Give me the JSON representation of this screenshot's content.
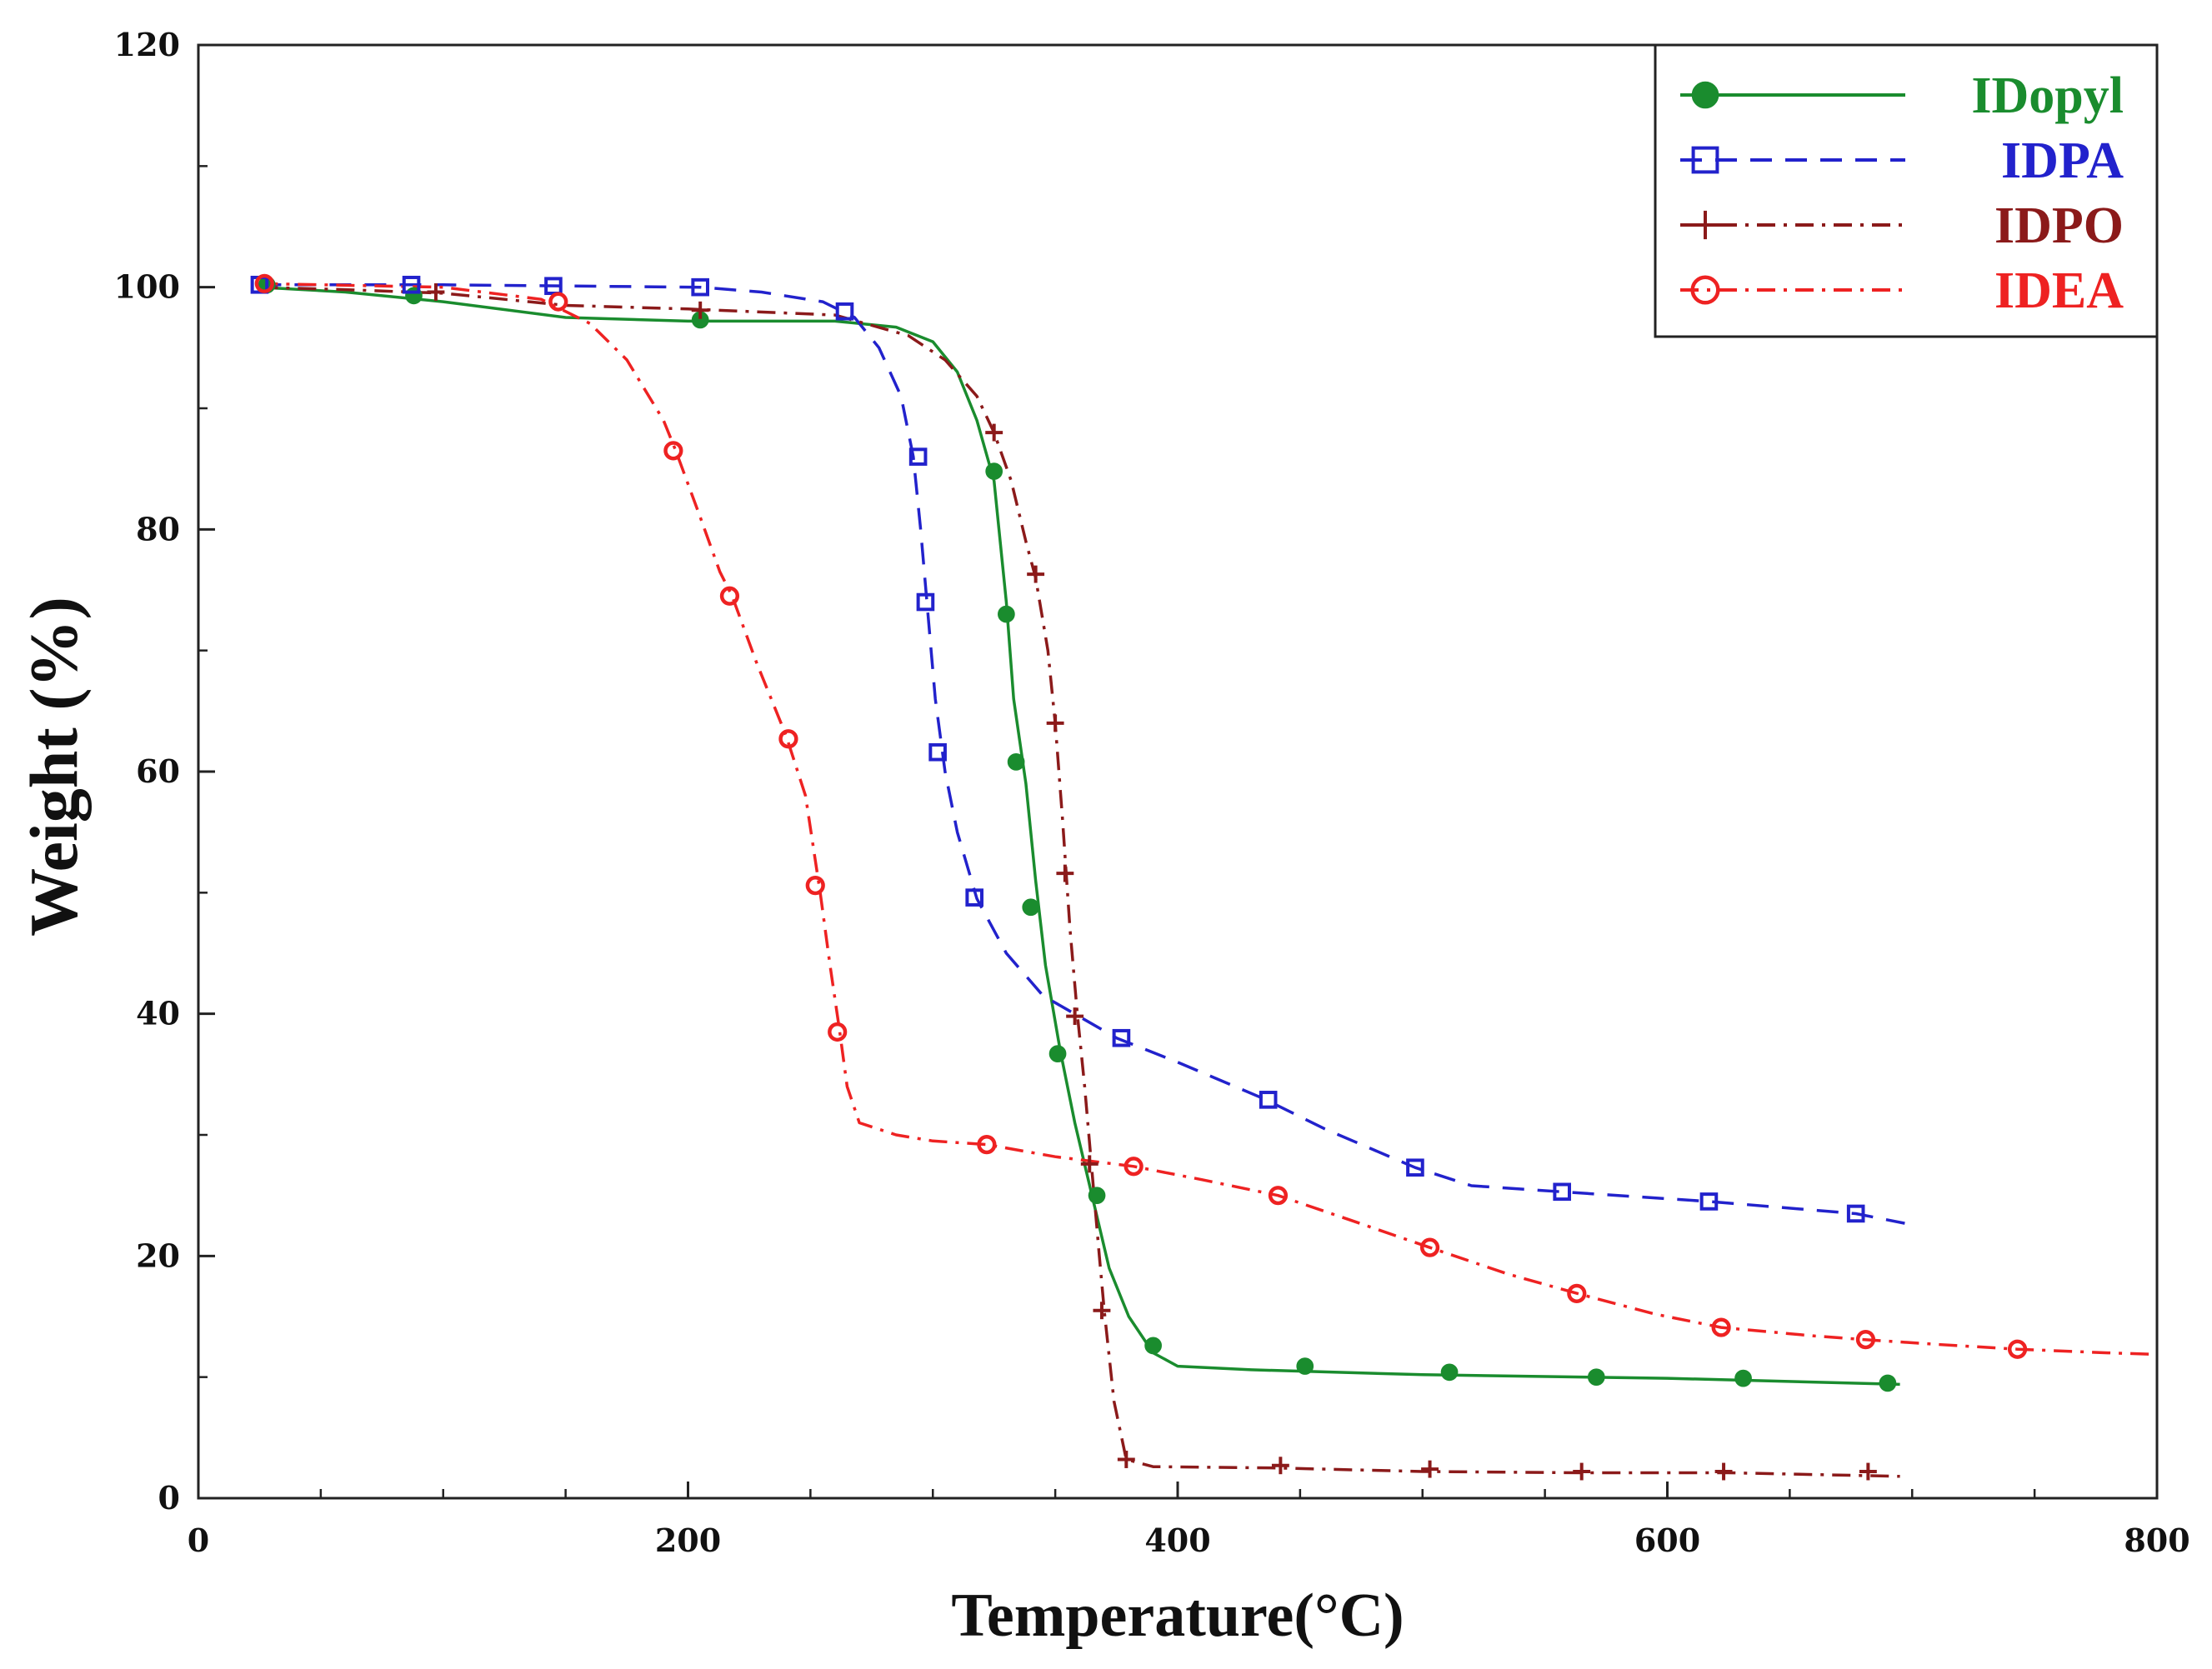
{
  "chart_data": {
    "type": "line",
    "title": "",
    "xlabel": "Temperature(°C)",
    "ylabel": "Weight (%)",
    "xlim": [
      0,
      800
    ],
    "ylim": [
      0,
      120
    ],
    "xticks": [
      0,
      200,
      400,
      600,
      800
    ],
    "yticks": [
      0,
      20,
      40,
      60,
      80,
      100,
      120
    ],
    "grid": false,
    "legend_position": "top-right",
    "series": [
      {
        "name": "IDopyl",
        "color": "#1a8c2e",
        "marker": "filled-circle",
        "line_style": "solid",
        "line": [
          [
            25,
            100
          ],
          [
            60,
            99.6
          ],
          [
            100,
            98.8
          ],
          [
            150,
            97.5
          ],
          [
            200,
            97.2
          ],
          [
            260,
            97.2
          ],
          [
            285,
            96.7
          ],
          [
            300,
            95.5
          ],
          [
            310,
            93
          ],
          [
            318,
            89
          ],
          [
            325,
            84
          ],
          [
            330,
            74
          ],
          [
            333,
            66
          ],
          [
            338,
            59
          ],
          [
            342,
            51
          ],
          [
            346,
            44
          ],
          [
            352,
            37
          ],
          [
            358,
            31
          ],
          [
            365,
            25
          ],
          [
            372,
            19
          ],
          [
            380,
            15
          ],
          [
            390,
            12
          ],
          [
            400,
            10.9
          ],
          [
            430,
            10.6
          ],
          [
            500,
            10.2
          ],
          [
            600,
            9.9
          ],
          [
            695,
            9.4
          ]
        ],
        "markers": [
          [
            28,
            100.2
          ],
          [
            88,
            99.3
          ],
          [
            205,
            97.3
          ],
          [
            325,
            84.8
          ],
          [
            330,
            73
          ],
          [
            334,
            60.8
          ],
          [
            340,
            48.8
          ],
          [
            351,
            36.7
          ],
          [
            367,
            25
          ],
          [
            390,
            12.6
          ],
          [
            452,
            10.9
          ],
          [
            511,
            10.4
          ],
          [
            571,
            10
          ],
          [
            631,
            9.9
          ],
          [
            690,
            9.5
          ]
        ]
      },
      {
        "name": "IDPA",
        "color": "#2222cc",
        "marker": "open-square",
        "line_style": "dashed",
        "line": [
          [
            25,
            100.2
          ],
          [
            100,
            100.2
          ],
          [
            150,
            100.1
          ],
          [
            205,
            100
          ],
          [
            230,
            99.6
          ],
          [
            255,
            98.8
          ],
          [
            268,
            97.5
          ],
          [
            278,
            95
          ],
          [
            287,
            91
          ],
          [
            292,
            86
          ],
          [
            295,
            80
          ],
          [
            298,
            73
          ],
          [
            301,
            66
          ],
          [
            305,
            60
          ],
          [
            310,
            55
          ],
          [
            318,
            49.5
          ],
          [
            330,
            45
          ],
          [
            345,
            41.5
          ],
          [
            375,
            38
          ],
          [
            400,
            36
          ],
          [
            435,
            33
          ],
          [
            460,
            30.5
          ],
          [
            497,
            27.3
          ],
          [
            520,
            25.8
          ],
          [
            557,
            25.3
          ],
          [
            617,
            24.5
          ],
          [
            677,
            23.5
          ],
          [
            697,
            22.7
          ]
        ],
        "markers": [
          [
            25,
            100.2
          ],
          [
            87,
            100.2
          ],
          [
            145,
            100.1
          ],
          [
            205,
            100
          ],
          [
            264,
            98
          ],
          [
            294,
            86
          ],
          [
            297,
            74
          ],
          [
            302,
            61.6
          ],
          [
            317,
            49.6
          ],
          [
            377,
            38
          ],
          [
            437,
            32.9
          ],
          [
            497,
            27.3
          ],
          [
            557,
            25.3
          ],
          [
            617,
            24.5
          ],
          [
            677,
            23.5
          ]
        ]
      },
      {
        "name": "IDPO",
        "color": "#8b1a1a",
        "marker": "plus",
        "line_style": "dash-dot",
        "line": [
          [
            25,
            100
          ],
          [
            60,
            99.8
          ],
          [
            100,
            99.5
          ],
          [
            150,
            98.5
          ],
          [
            200,
            98.2
          ],
          [
            260,
            97.7
          ],
          [
            290,
            96
          ],
          [
            305,
            94
          ],
          [
            318,
            91
          ],
          [
            325,
            88
          ],
          [
            332,
            84
          ],
          [
            338,
            79
          ],
          [
            342,
            76
          ],
          [
            347,
            70
          ],
          [
            350,
            64
          ],
          [
            353,
            56
          ],
          [
            356,
            47
          ],
          [
            359,
            40
          ],
          [
            362,
            34
          ],
          [
            365,
            27
          ],
          [
            368,
            20
          ],
          [
            370,
            15.5
          ],
          [
            374,
            8
          ],
          [
            379,
            3.2
          ],
          [
            390,
            2.6
          ],
          [
            440,
            2.5
          ],
          [
            500,
            2.2
          ],
          [
            565,
            2.1
          ],
          [
            625,
            2.1
          ],
          [
            695,
            1.8
          ]
        ],
        "markers": [
          [
            97,
            99.6
          ],
          [
            205,
            98.1
          ],
          [
            325,
            88
          ],
          [
            342,
            76.3
          ],
          [
            350,
            64
          ],
          [
            354,
            51.6
          ],
          [
            358,
            39.8
          ],
          [
            364,
            27.6
          ],
          [
            369,
            15.5
          ],
          [
            379,
            3.2
          ],
          [
            442,
            2.7
          ],
          [
            503,
            2.4
          ],
          [
            565,
            2.2
          ],
          [
            623,
            2.2
          ],
          [
            682,
            2.2
          ]
        ]
      },
      {
        "name": "IDEA",
        "color": "#ee2222",
        "marker": "open-circle",
        "line_style": "dash-dot",
        "line": [
          [
            25,
            100.3
          ],
          [
            100,
            100
          ],
          [
            140,
            99
          ],
          [
            160,
            97
          ],
          [
            175,
            94
          ],
          [
            190,
            89
          ],
          [
            195,
            86.5
          ],
          [
            205,
            81
          ],
          [
            213,
            76.5
          ],
          [
            218,
            74.5
          ],
          [
            228,
            69
          ],
          [
            240,
            63
          ],
          [
            248,
            58
          ],
          [
            254,
            50
          ],
          [
            258,
            44
          ],
          [
            262,
            38.5
          ],
          [
            265,
            34
          ],
          [
            270,
            31
          ],
          [
            285,
            30
          ],
          [
            300,
            29.5
          ],
          [
            322,
            29.2
          ],
          [
            350,
            28.2
          ],
          [
            382,
            27.4
          ],
          [
            410,
            26.3
          ],
          [
            441,
            25
          ],
          [
            470,
            23
          ],
          [
            503,
            20.7
          ],
          [
            535,
            18.5
          ],
          [
            565,
            16.8
          ],
          [
            595,
            15.2
          ],
          [
            622,
            14.1
          ],
          [
            660,
            13.4
          ],
          [
            680,
            13.1
          ],
          [
            710,
            12.7
          ],
          [
            743,
            12.3
          ],
          [
            780,
            12
          ],
          [
            797,
            11.9
          ]
        ],
        "markers": [
          [
            27,
            100.3
          ],
          [
            147,
            98.8
          ],
          [
            194,
            86.5
          ],
          [
            217,
            74.5
          ],
          [
            241,
            62.7
          ],
          [
            252,
            50.6
          ],
          [
            261,
            38.5
          ],
          [
            322,
            29.2
          ],
          [
            382,
            27.4
          ],
          [
            441,
            25
          ],
          [
            503,
            20.7
          ],
          [
            563,
            16.9
          ],
          [
            622,
            14.1
          ],
          [
            681,
            13.1
          ],
          [
            743,
            12.3
          ]
        ]
      }
    ]
  }
}
